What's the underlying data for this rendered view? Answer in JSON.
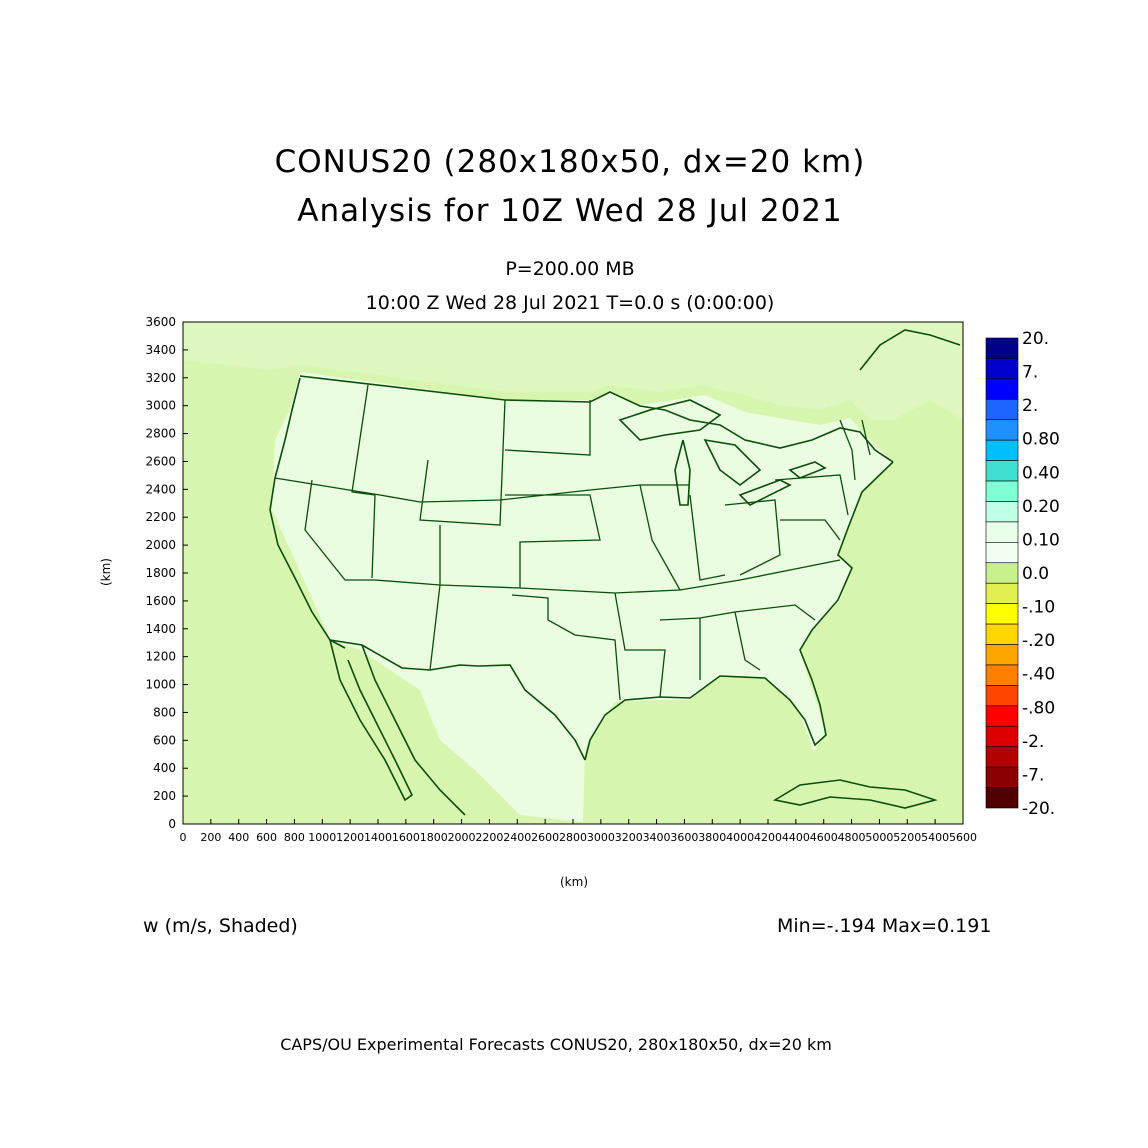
{
  "titles": {
    "line1": "CONUS20 (280x180x50, dx=20 km)",
    "line2": "Analysis for 10Z Wed 28 Jul 2021",
    "level": "P=200.00 MB",
    "time": "10:00 Z Wed 28 Jul 2021   T=0.0 s (0:00:00)"
  },
  "axes": {
    "x_unit": "(km)",
    "y_unit": "(km)",
    "x_range": [
      0,
      5600
    ],
    "y_range": [
      0,
      3600
    ],
    "x_ticks": [
      "0",
      "200",
      "400",
      "600",
      "800",
      "1000",
      "1200",
      "1400",
      "1600",
      "1800",
      "2000",
      "2200",
      "2400",
      "2600",
      "2800",
      "3000",
      "3200",
      "3400",
      "3600",
      "3800",
      "4000",
      "4200",
      "4400",
      "4600",
      "4800",
      "5000",
      "5200",
      "5400",
      "5600"
    ],
    "y_ticks": [
      "0",
      "200",
      "400",
      "600",
      "800",
      "1000",
      "1200",
      "1400",
      "1600",
      "1800",
      "2000",
      "2200",
      "2400",
      "2600",
      "2800",
      "3000",
      "3200",
      "3400",
      "3600"
    ]
  },
  "colorbar": {
    "labels": [
      "20.",
      "7.",
      "2.",
      "0.80",
      "0.40",
      "0.20",
      "0.10",
      "0.0",
      "-.10",
      "-.20",
      "-.40",
      "-.80",
      "-2.",
      "-7.",
      "-20."
    ],
    "colors": [
      "#00008b",
      "#0000cd",
      "#0000ff",
      "#1e64ff",
      "#1e90ff",
      "#00bfff",
      "#40e0d0",
      "#7fffd4",
      "#c0ffe8",
      "#eaffea",
      "#f0fff0",
      "#c8f08c",
      "#e1f050",
      "#ffff00",
      "#ffd700",
      "#ffa500",
      "#ff7f00",
      "#ff4500",
      "#ff0000",
      "#dc0000",
      "#b40000",
      "#8b0000",
      "#500000"
    ]
  },
  "field": {
    "background": "#d8f5b0",
    "land": "#eafde0",
    "outline": "#0b4d0b"
  },
  "bottom": {
    "variable": "w (m/s, Shaded)",
    "minmax": "Min=-.194 Max=0.191",
    "footer": "CAPS/OU Experimental Forecasts  CONUS20, 280x180x50, dx=20 km"
  }
}
